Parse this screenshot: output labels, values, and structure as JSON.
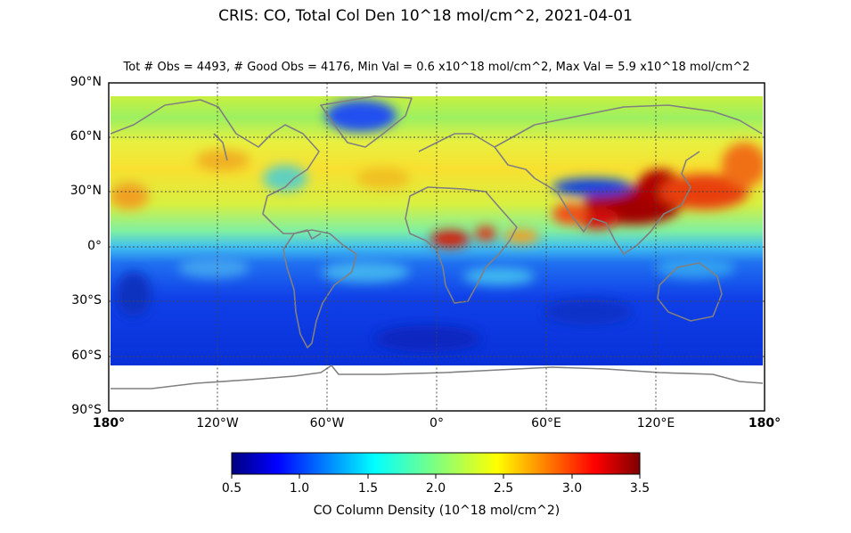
{
  "title": "CRIS: CO, Total Col Den 10^18 mol/cm^2, 2021-04-01",
  "subtitle": "Tot # Obs = 4493,   # Good Obs = 4176,   Min Val = 0.6 x10^18 mol/cm^2,  Max Val = 5.9 x10^18 mol/cm^2",
  "lat_labels": [
    "90°N",
    "60°N",
    "30°N",
    "0°",
    "30°S",
    "60°S",
    "90°S"
  ],
  "lon_labels": [
    "180°",
    "120°W",
    "60°W",
    "0°",
    "60°E",
    "120°E",
    "180°"
  ],
  "colorbar": {
    "ticks": [
      "0.5",
      "1.0",
      "1.5",
      "2.0",
      "2.5",
      "3.0",
      "3.5"
    ],
    "label": "CO Column Density (10^18 mol/cm^2)",
    "min": 0.5,
    "max": 3.5
  },
  "colors": {
    "coastline": "#808080",
    "grid": "#555555"
  }
}
